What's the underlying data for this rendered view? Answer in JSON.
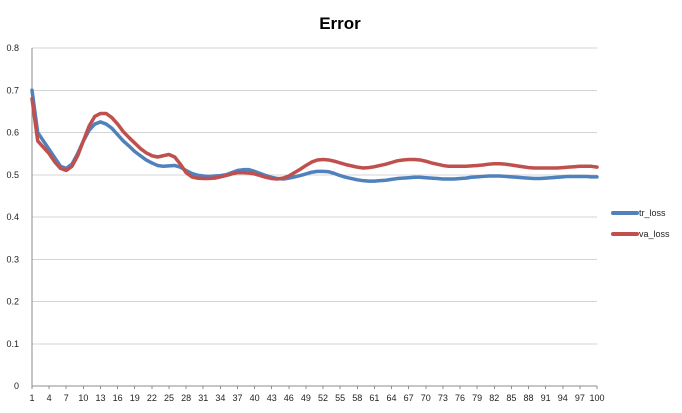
{
  "chart_data": {
    "type": "line",
    "title": "Error",
    "xlabel": "",
    "ylabel": "",
    "ylim": [
      0,
      0.8
    ],
    "yticks": [
      "0",
      "0.1",
      "0.2",
      "0.3",
      "0.4",
      "0.5",
      "0.6",
      "0.7",
      "0.8"
    ],
    "xticks": [
      "1",
      "4",
      "7",
      "10",
      "13",
      "16",
      "19",
      "22",
      "25",
      "28",
      "31",
      "34",
      "37",
      "40",
      "43",
      "46",
      "49",
      "52",
      "55",
      "58",
      "61",
      "64",
      "67",
      "70",
      "73",
      "76",
      "79",
      "82",
      "85",
      "88",
      "91",
      "94",
      "97",
      "100"
    ],
    "grid": "horizontal",
    "legend_position": "right",
    "x_start": 1,
    "x_end": 100,
    "series": [
      {
        "name": "tr_loss",
        "color": "#4f81bd",
        "values": [
          0.7,
          0.6,
          0.58,
          0.56,
          0.54,
          0.52,
          0.515,
          0.525,
          0.55,
          0.58,
          0.605,
          0.62,
          0.625,
          0.62,
          0.61,
          0.595,
          0.58,
          0.568,
          0.555,
          0.545,
          0.535,
          0.528,
          0.522,
          0.52,
          0.521,
          0.522,
          0.518,
          0.51,
          0.503,
          0.499,
          0.497,
          0.496,
          0.497,
          0.498,
          0.5,
          0.505,
          0.51,
          0.512,
          0.512,
          0.508,
          0.503,
          0.498,
          0.494,
          0.491,
          0.49,
          0.492,
          0.495,
          0.498,
          0.502,
          0.506,
          0.508,
          0.508,
          0.507,
          0.503,
          0.498,
          0.494,
          0.491,
          0.488,
          0.486,
          0.485,
          0.485,
          0.486,
          0.487,
          0.489,
          0.491,
          0.492,
          0.493,
          0.494,
          0.494,
          0.493,
          0.492,
          0.491,
          0.49,
          0.49,
          0.49,
          0.491,
          0.492,
          0.494,
          0.495,
          0.496,
          0.497,
          0.497,
          0.497,
          0.496,
          0.495,
          0.494,
          0.493,
          0.492,
          0.491,
          0.491,
          0.492,
          0.493,
          0.494,
          0.495,
          0.496,
          0.496,
          0.496,
          0.496,
          0.495,
          0.495
        ]
      },
      {
        "name": "va_loss",
        "color": "#c0504d",
        "values": [
          0.68,
          0.58,
          0.565,
          0.55,
          0.53,
          0.515,
          0.51,
          0.52,
          0.545,
          0.58,
          0.615,
          0.638,
          0.645,
          0.645,
          0.635,
          0.62,
          0.602,
          0.588,
          0.575,
          0.562,
          0.552,
          0.545,
          0.542,
          0.545,
          0.548,
          0.542,
          0.525,
          0.505,
          0.495,
          0.492,
          0.491,
          0.491,
          0.492,
          0.495,
          0.498,
          0.502,
          0.505,
          0.505,
          0.504,
          0.502,
          0.498,
          0.494,
          0.491,
          0.49,
          0.492,
          0.497,
          0.505,
          0.513,
          0.522,
          0.53,
          0.535,
          0.536,
          0.535,
          0.532,
          0.528,
          0.524,
          0.521,
          0.518,
          0.516,
          0.517,
          0.519,
          0.522,
          0.525,
          0.529,
          0.533,
          0.535,
          0.536,
          0.536,
          0.535,
          0.532,
          0.528,
          0.525,
          0.522,
          0.52,
          0.52,
          0.52,
          0.52,
          0.521,
          0.522,
          0.523,
          0.525,
          0.526,
          0.526,
          0.525,
          0.523,
          0.521,
          0.519,
          0.517,
          0.516,
          0.516,
          0.516,
          0.516,
          0.516,
          0.517,
          0.518,
          0.519,
          0.52,
          0.52,
          0.52,
          0.518
        ]
      }
    ]
  }
}
